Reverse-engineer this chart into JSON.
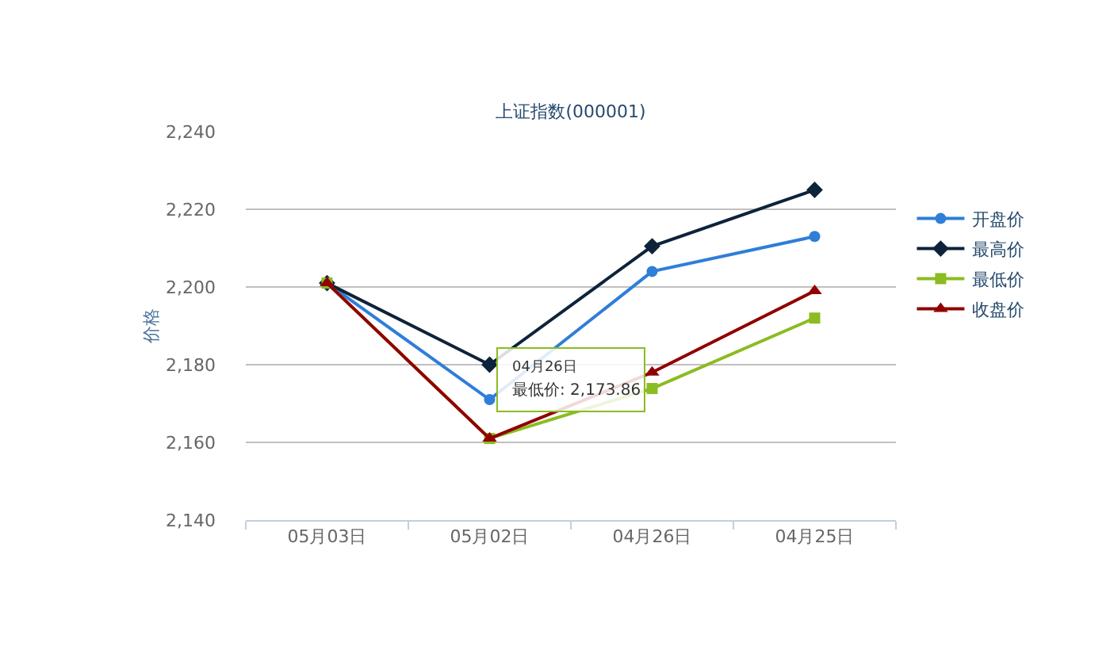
{
  "chart_data": {
    "type": "line",
    "title": "上证指数(000001)",
    "ylabel": "价格",
    "categories": [
      "05月03日",
      "05月02日",
      "04月26日",
      "04月25日"
    ],
    "series": [
      {
        "name": "开盘价",
        "color": "#2f7ed8",
        "marker": "circle",
        "values": [
          2201,
          2171,
          2204,
          2213
        ]
      },
      {
        "name": "最高价",
        "color": "#0d233a",
        "marker": "diamond",
        "values": [
          2201,
          2180,
          2210.5,
          2225
        ]
      },
      {
        "name": "最低价",
        "color": "#8bbc21",
        "marker": "square",
        "values": [
          2201,
          2161,
          2173.86,
          2192
        ]
      },
      {
        "name": "收盘价",
        "color": "#910000",
        "marker": "triangle",
        "values": [
          2201,
          2161,
          2178,
          2199
        ]
      }
    ],
    "ylim": [
      2140,
      2240
    ],
    "yticks": [
      {
        "value": 2140,
        "label": "2,140"
      },
      {
        "value": 2160,
        "label": "2,160"
      },
      {
        "value": 2180,
        "label": "2,180"
      },
      {
        "value": 2200,
        "label": "2,200"
      },
      {
        "value": 2220,
        "label": "2,220"
      },
      {
        "value": 2240,
        "label": "2,240"
      }
    ],
    "grid": "y",
    "legend": "right",
    "line_style": "solid",
    "annotations": [
      "04月26日",
      {
        "text": "最低价: 2,173.86",
        "x": "04月26日",
        "y": 2173.86
      }
    ]
  }
}
